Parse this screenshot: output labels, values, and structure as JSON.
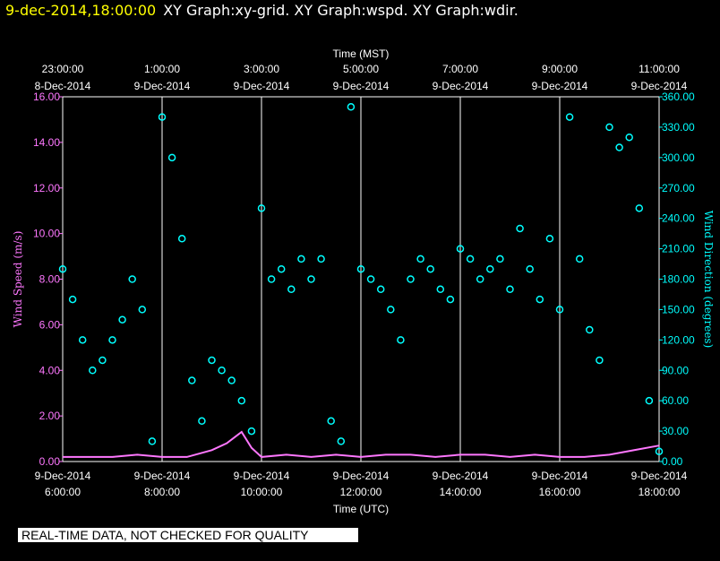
{
  "header": {
    "date": "9-dec-2014,18:00:00",
    "titles": "XY Graph:xy-grid.  XY Graph:wspd.  XY Graph:wdir."
  },
  "disclaimer": "REAL-TIME DATA, NOT CHECKED FOR QUALITY",
  "colors": {
    "background": "#000000",
    "wspd": "#ff77ff",
    "wdir": "#00ffff",
    "axis": "#ffffff",
    "header_date": "#ffff00"
  },
  "chart_data": {
    "type": "scatter",
    "grid": true,
    "top_axis": {
      "label": "Time (MST)",
      "ticks": [
        {
          "time": "23:00:00",
          "date": "8-Dec-2014"
        },
        {
          "time": "1:00:00",
          "date": "9-Dec-2014"
        },
        {
          "time": "3:00:00",
          "date": "9-Dec-2014"
        },
        {
          "time": "5:00:00",
          "date": "9-Dec-2014"
        },
        {
          "time": "7:00:00",
          "date": "9-Dec-2014"
        },
        {
          "time": "9:00:00",
          "date": "9-Dec-2014"
        },
        {
          "time": "11:00:00",
          "date": "9-Dec-2014"
        }
      ]
    },
    "bottom_axis": {
      "label": "Time (UTC)",
      "ticks": [
        {
          "date": "9-Dec-2014",
          "time": "6:00:00"
        },
        {
          "date": "9-Dec-2014",
          "time": "8:00:00"
        },
        {
          "date": "9-Dec-2014",
          "time": "10:00:00"
        },
        {
          "date": "9-Dec-2014",
          "time": "12:00:00"
        },
        {
          "date": "9-Dec-2014",
          "time": "14:00:00"
        },
        {
          "date": "9-Dec-2014",
          "time": "16:00:00"
        },
        {
          "date": "9-Dec-2014",
          "time": "18:00:00"
        }
      ]
    },
    "xlim": [
      6,
      18
    ],
    "grid_hours": [
      6,
      8,
      10,
      12,
      14,
      16,
      18
    ],
    "left_axis": {
      "label": "Wind Speed (m/s)",
      "ylim": [
        0,
        16
      ],
      "ticks": [
        "0.00",
        "2.00",
        "4.00",
        "6.00",
        "8.00",
        "10.00",
        "12.00",
        "14.00",
        "16.00"
      ]
    },
    "right_axis": {
      "label": "Wind Direction (degrees)",
      "ylim": [
        0,
        360
      ],
      "ticks": [
        "0.00",
        "30.00",
        "60.00",
        "90.00",
        "120.00",
        "150.00",
        "180.00",
        "210.00",
        "240.00",
        "270.00",
        "300.00",
        "330.00",
        "360.00"
      ]
    },
    "series": [
      {
        "key": "wspd",
        "axis": "left",
        "style": "line",
        "x_utc_hour": [
          6.0,
          6.5,
          7.0,
          7.5,
          8.0,
          8.5,
          9.0,
          9.3,
          9.6,
          9.8,
          10.0,
          10.5,
          11.0,
          11.5,
          12.0,
          12.5,
          13.0,
          13.5,
          14.0,
          14.5,
          15.0,
          15.5,
          16.0,
          16.5,
          17.0,
          17.5,
          18.0
        ],
        "values": [
          0.2,
          0.2,
          0.2,
          0.3,
          0.2,
          0.2,
          0.5,
          0.8,
          1.3,
          0.6,
          0.2,
          0.3,
          0.2,
          0.3,
          0.2,
          0.3,
          0.3,
          0.2,
          0.3,
          0.3,
          0.2,
          0.3,
          0.2,
          0.2,
          0.3,
          0.5,
          0.7
        ]
      },
      {
        "key": "wdir",
        "axis": "right",
        "style": "scatter",
        "x_utc_hour": [
          6.0,
          6.2,
          6.4,
          6.6,
          6.8,
          7.0,
          7.2,
          7.4,
          7.6,
          7.8,
          8.0,
          8.2,
          8.4,
          8.6,
          8.8,
          9.0,
          9.2,
          9.4,
          9.6,
          9.8,
          10.0,
          10.2,
          10.4,
          10.6,
          10.8,
          11.0,
          11.2,
          11.4,
          11.6,
          11.8,
          12.0,
          12.2,
          12.4,
          12.6,
          12.8,
          13.0,
          13.2,
          13.4,
          13.6,
          13.8,
          14.0,
          14.2,
          14.4,
          14.6,
          14.8,
          15.0,
          15.2,
          15.4,
          15.6,
          15.8,
          16.0,
          16.2,
          16.4,
          16.6,
          16.8,
          17.0,
          17.2,
          17.4,
          17.6,
          17.8,
          18.0
        ],
        "values": [
          190,
          160,
          120,
          90,
          100,
          120,
          140,
          180,
          150,
          20,
          340,
          300,
          220,
          80,
          40,
          100,
          90,
          80,
          60,
          30,
          250,
          180,
          190,
          170,
          200,
          180,
          200,
          40,
          20,
          350,
          190,
          180,
          170,
          150,
          120,
          180,
          200,
          190,
          170,
          160,
          210,
          200,
          180,
          190,
          200,
          170,
          230,
          190,
          160,
          220,
          150,
          340,
          200,
          130,
          100,
          330,
          310,
          320,
          250,
          60,
          10
        ]
      }
    ]
  }
}
